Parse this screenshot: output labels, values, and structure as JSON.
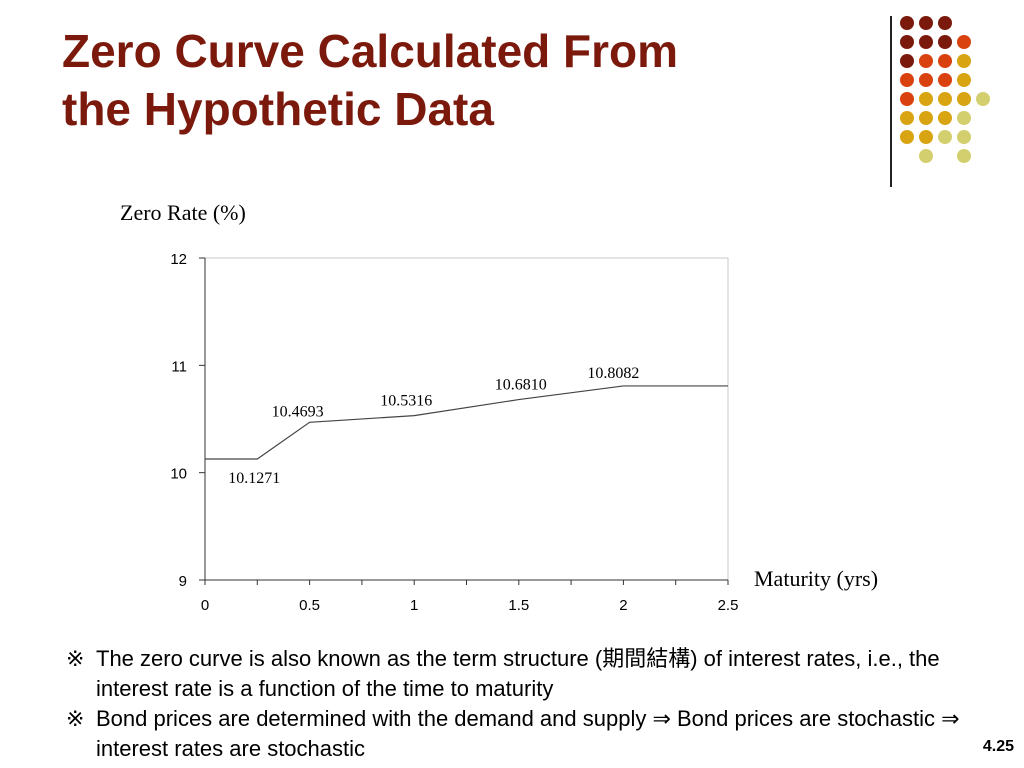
{
  "slide": {
    "title_line1": "Zero Curve Calculated From",
    "title_line2": "the Hypothetic Data",
    "slide_number": "4.25",
    "title_color": "#7b1a0c"
  },
  "chart_data": {
    "type": "line",
    "ylabel": "Zero Rate (%)",
    "xlabel": "Maturity (yrs)",
    "xlim": [
      0,
      2.5
    ],
    "ylim": [
      9,
      12
    ],
    "x_ticks": [
      "0",
      "0.5",
      "1",
      "1.5",
      "2",
      "2.5"
    ],
    "y_ticks": [
      "9",
      "10",
      "11",
      "12"
    ],
    "grid": false,
    "series": [
      {
        "x": [
          0,
          0.25,
          0.5,
          1.0,
          1.5,
          2.0,
          2.5
        ],
        "y": [
          10.1271,
          10.1271,
          10.4693,
          10.5316,
          10.681,
          10.8082,
          10.8082
        ]
      }
    ],
    "data_labels": [
      {
        "x": 0.25,
        "y": 10.1271,
        "text": "10.1271"
      },
      {
        "x": 0.5,
        "y": 10.4693,
        "text": "10.4693"
      },
      {
        "x": 1.0,
        "y": 10.5316,
        "text": "10.5316"
      },
      {
        "x": 1.5,
        "y": 10.681,
        "text": "10.6810"
      },
      {
        "x": 2.0,
        "y": 10.8082,
        "text": "10.8082"
      }
    ]
  },
  "bullets": [
    {
      "mark": "※",
      "text": "The zero curve is also known as the term structure (期間結構) of interest rates, i.e., the interest rate is a function of the time to maturity"
    },
    {
      "mark": "※",
      "text": "Bond prices are determined with the demand and supply ⇒ Bond prices are stochastic ⇒ interest rates are stochastic"
    }
  ],
  "decor_colors": [
    "#7b1a0c",
    "#d9410e",
    "#d9a411",
    "#d4cf6e"
  ]
}
